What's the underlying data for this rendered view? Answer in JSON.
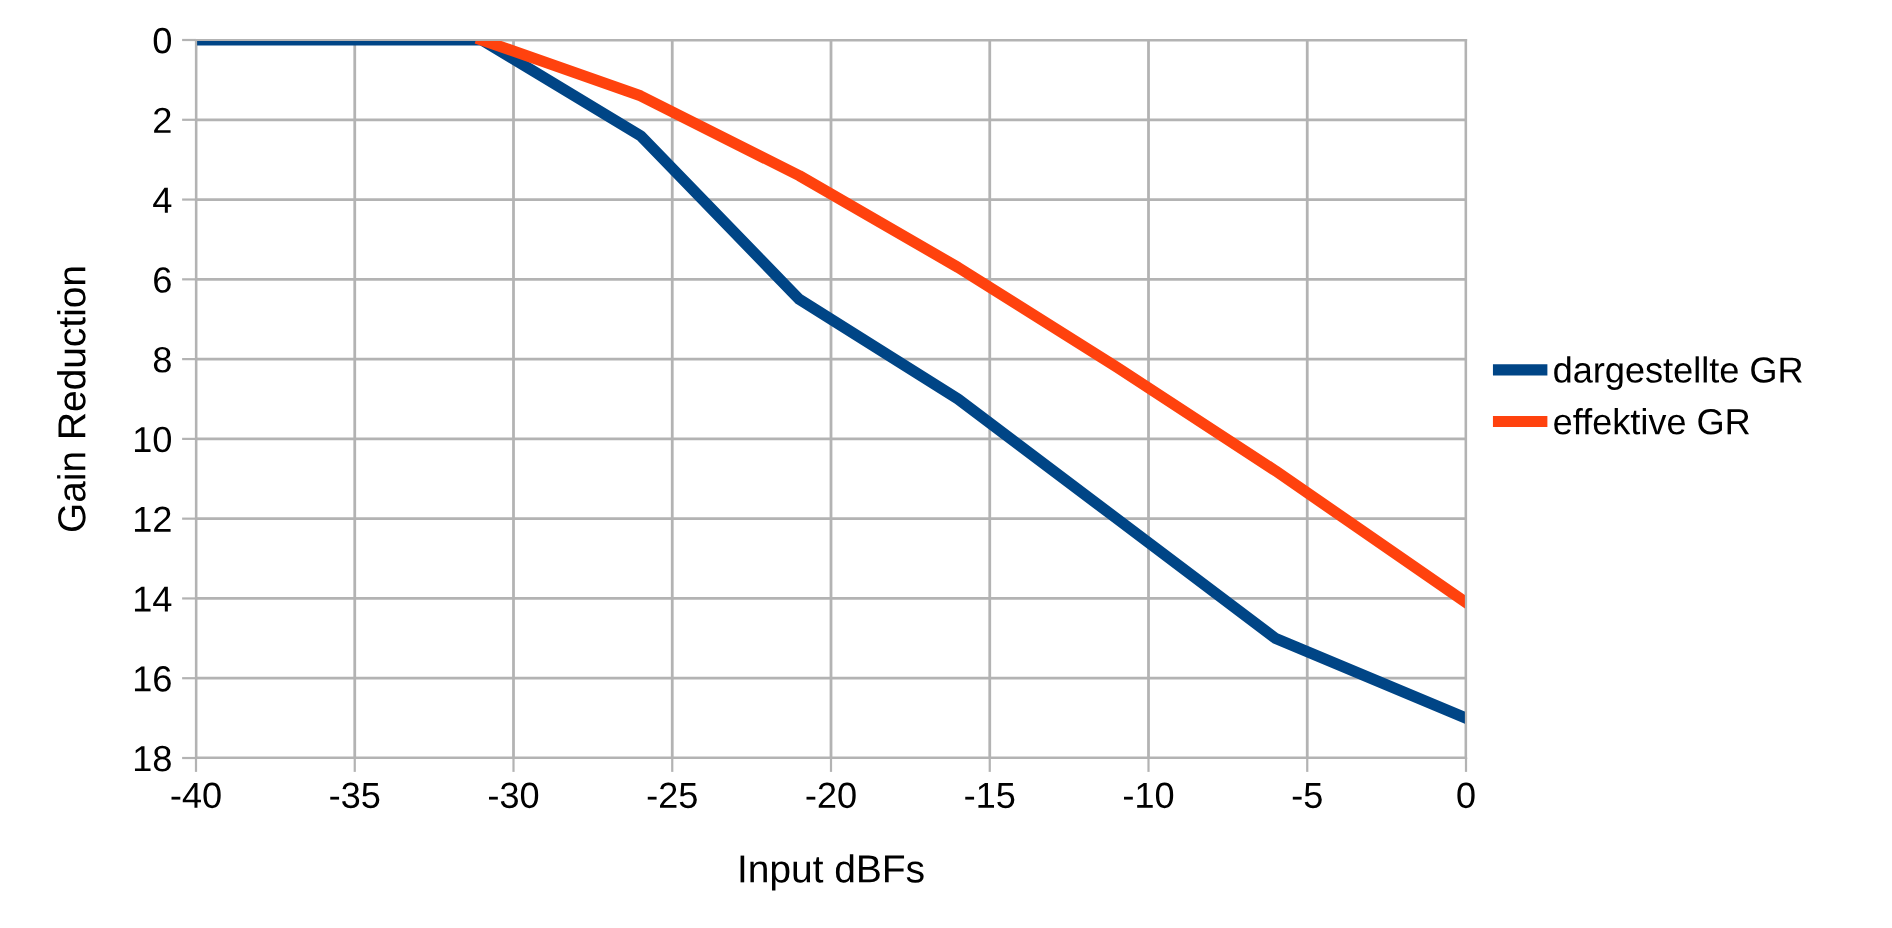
{
  "chart_data": {
    "type": "line",
    "xlabel": "Input dBFs",
    "ylabel": "Gain Reduction",
    "xlim": [
      -40,
      0
    ],
    "xticks": [
      -40,
      -35,
      -30,
      -25,
      -20,
      -15,
      -10,
      -5,
      0
    ],
    "ylim": [
      18,
      0
    ],
    "yticks": [
      0,
      2,
      4,
      6,
      8,
      10,
      12,
      14,
      16,
      18
    ],
    "grid": true,
    "legend": "right",
    "marker": "none",
    "line_style": "solid",
    "series": [
      {
        "name": "dargestellte GR",
        "color": "#004586",
        "x": [
          -40,
          -31,
          -26,
          -21,
          -16,
          -11,
          -6,
          0
        ],
        "values": [
          0,
          0,
          2.4,
          6.5,
          9,
          12,
          15,
          17
        ]
      },
      {
        "name": "effektive GR",
        "color": "#ff420e",
        "x": [
          -31,
          -26,
          -21,
          -16,
          -11,
          -6,
          0
        ],
        "values": [
          0,
          1.4,
          3.4,
          5.7,
          8.2,
          10.8,
          14.1
        ]
      }
    ]
  }
}
